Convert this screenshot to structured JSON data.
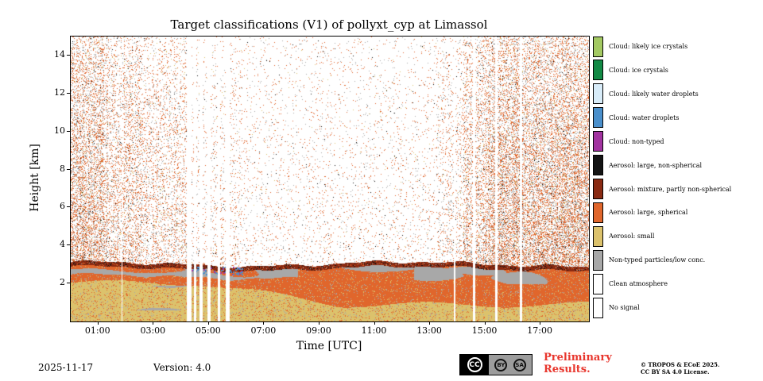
{
  "title": "Target classifications (V1) of pollyxt_cyp at Limassol",
  "axes": {
    "xlabel": "Time [UTC]",
    "ylabel": "Height [km]"
  },
  "legend": [
    {
      "label": "Cloud: likely ice crystals",
      "color": "#a3c962"
    },
    {
      "label": "Cloud: ice crystals",
      "color": "#128a45"
    },
    {
      "label": "Cloud: likely water droplets",
      "color": "#d8ecf9"
    },
    {
      "label": "Cloud: water droplets",
      "color": "#4a8fcb"
    },
    {
      "label": "Cloud: non-typed",
      "color": "#a233a0"
    },
    {
      "label": "Aerosol: large, non-spherical",
      "color": "#141414"
    },
    {
      "label": "Aerosol: mixture, partly non-spherical",
      "color": "#8a2a12"
    },
    {
      "label": "Aerosol: large, spherical",
      "color": "#e0662c"
    },
    {
      "label": "Aerosol: small",
      "color": "#dcc26c"
    },
    {
      "label": "Non-typed particles/low conc.",
      "color": "#a8a8a8"
    },
    {
      "label": "Clean atmosphere",
      "color": "#ffffff"
    },
    {
      "label": "No signal",
      "color": "#ffffff"
    }
  ],
  "footer": {
    "date": "2025-11-17",
    "version": "Version: 4.0",
    "preliminary_line1": "Preliminary",
    "preliminary_line2": "Results.",
    "copyright_line1": "© TROPOS & ECoE 2025.",
    "copyright_line2": "CC BY SA 4.0 License.",
    "cc_label": "CC",
    "by_label": "BY",
    "sa_label": "SA"
  },
  "chart_data": {
    "type": "heatmap",
    "title": "Target classifications (V1) of pollyxt_cyp at Limassol",
    "xlabel": "Time [UTC]",
    "ylabel": "Height [km]",
    "x_hours_max": 18.75,
    "ylim": [
      0,
      15
    ],
    "xtick_hours": [
      1,
      3,
      5,
      7,
      9,
      11,
      13,
      15,
      17
    ],
    "xtick_labels": [
      "01:00",
      "03:00",
      "05:00",
      "07:00",
      "09:00",
      "11:00",
      "13:00",
      "15:00",
      "17:00"
    ],
    "yticks": [
      2,
      4,
      6,
      8,
      10,
      12,
      14
    ],
    "categories": [
      "Cloud: likely ice crystals",
      "Cloud: ice crystals",
      "Cloud: likely water droplets",
      "Cloud: water droplets",
      "Cloud: non-typed",
      "Aerosol: large, non-spherical",
      "Aerosol: mixture, partly non-spherical",
      "Aerosol: large, spherical",
      "Aerosol: small",
      "Non-typed particles/low conc.",
      "Clean atmosphere",
      "No signal"
    ],
    "colors": {
      "cloud_likely_ice": "#a3c962",
      "cloud_ice": "#128a45",
      "cloud_likely_water": "#d8ecf9",
      "cloud_water": "#4a8fcb",
      "cloud_nontyped": "#a233a0",
      "aerosol_large_nonspherical": "#141414",
      "aerosol_mixture": "#8a2a12",
      "aerosol_large_spherical": "#e0662c",
      "aerosol_small": "#dcc26c",
      "non_typed_low": "#a8a8a8",
      "clean_atmosphere": "#ffffff",
      "no_signal": "#ffffff"
    },
    "aerosol_layer_top_km": 3.0,
    "mixture_band_thickness_km": 0.2,
    "gaps_hours": [
      [
        1.84,
        1.88
      ],
      [
        4.2,
        4.36
      ],
      [
        4.46,
        4.55
      ],
      [
        4.66,
        4.76
      ],
      [
        4.95,
        5.06
      ],
      [
        5.32,
        5.4
      ],
      [
        5.62,
        5.74
      ],
      [
        13.86,
        13.93
      ],
      [
        14.56,
        14.63
      ],
      [
        15.36,
        15.43
      ],
      [
        16.26,
        16.33
      ]
    ],
    "noise_dense_hours": [
      [
        0,
        2.6
      ],
      [
        14.2,
        18.75
      ]
    ],
    "water_droplet_specks_hours": [
      4.2,
      6.2
    ]
  }
}
